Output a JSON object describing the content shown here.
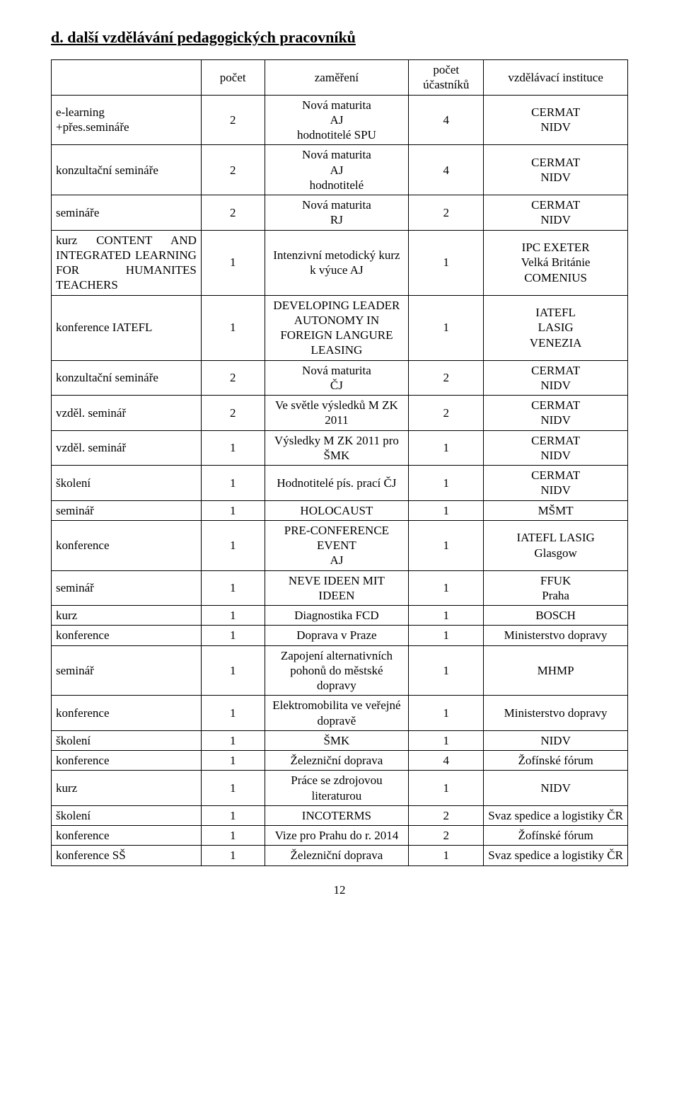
{
  "heading": "d. další vzdělávání pedagogických pracovníků",
  "pageNumber": "12",
  "tableHeaders": {
    "h1": "",
    "h2": "počet",
    "h3": "zaměření",
    "h4": "počet účastníků",
    "h5": "vzdělávací instituce"
  },
  "rows": [
    {
      "c1": "e-learning\n+přes.semináře",
      "c2": "2",
      "c3": "Nová maturita\nAJ\nhodnotitelé SPU",
      "c4": "4",
      "c5": "CERMAT\nNIDV"
    },
    {
      "c1": "konzultační semináře",
      "c2": "2",
      "c3": "Nová maturita\nAJ\nhodnotitelé",
      "c4": "4",
      "c5": "CERMAT\nNIDV"
    },
    {
      "c1": "semináře",
      "c2": "2",
      "c3": "Nová maturita\nRJ",
      "c4": "2",
      "c5": "CERMAT\nNIDV"
    },
    {
      "c1": "kurz CONTENT AND INTEGRATED LEARNING FOR HUMANITES TEACHERS",
      "c2": "1",
      "c3": "Intenzivní metodický kurz k výuce AJ",
      "c4": "1",
      "c5": "IPC EXETER\nVelká Británie\nCOMENIUS",
      "c1Just": true
    },
    {
      "c1": "konference IATEFL",
      "c2": "1",
      "c3": "DEVELOPING LEADER AUTONOMY IN FOREIGN LANGURE LEASING",
      "c4": "1",
      "c5": "IATEFL\nLASIG\nVENEZIA"
    },
    {
      "c1": "konzultační semináře",
      "c2": "2",
      "c3": "Nová maturita\nČJ",
      "c4": "2",
      "c5": "CERMAT\nNIDV"
    },
    {
      "c1": "vzděl. seminář",
      "c2": "2",
      "c3": "Ve světle výsledků M ZK 2011",
      "c4": "2",
      "c5": "CERMAT\nNIDV"
    },
    {
      "c1": "vzděl. seminář",
      "c2": "1",
      "c3": "Výsledky M ZK 2011 pro ŠMK",
      "c4": "1",
      "c5": "CERMAT\nNIDV"
    },
    {
      "c1": "školení",
      "c2": "1",
      "c3": "Hodnotitelé pís. prací ČJ",
      "c4": "1",
      "c5": "CERMAT\nNIDV"
    },
    {
      "c1": "seminář",
      "c2": "1",
      "c3": "HOLOCAUST",
      "c4": "1",
      "c5": "MŠMT"
    },
    {
      "c1": "konference",
      "c2": "1",
      "c3": "PRE-CONFERENCE EVENT\nAJ",
      "c4": "1",
      "c5": "IATEFL LASIG\nGlasgow"
    },
    {
      "c1": "seminář",
      "c2": "1",
      "c3": "NEVE IDEEN MIT IDEEN",
      "c4": "1",
      "c5": "FFUK\nPraha"
    },
    {
      "c1": "kurz",
      "c2": "1",
      "c3": "Diagnostika FCD",
      "c4": "1",
      "c5": "BOSCH"
    },
    {
      "c1": "konference",
      "c2": "1",
      "c3": "Doprava v Praze",
      "c4": "1",
      "c5": "Ministerstvo dopravy"
    },
    {
      "c1": "seminář",
      "c2": "1",
      "c3": "Zapojení alternativních pohonů do městské dopravy",
      "c4": "1",
      "c5": "MHMP"
    },
    {
      "c1": "konference",
      "c2": "1",
      "c3": "Elektromobilita ve veřejné dopravě",
      "c4": "1",
      "c5": "Ministerstvo dopravy"
    },
    {
      "c1": "školení",
      "c2": "1",
      "c3": "ŠMK",
      "c4": "1",
      "c5": "NIDV"
    },
    {
      "c1": "konference",
      "c2": "1",
      "c3": "Železniční doprava",
      "c4": "4",
      "c5": "Žofínské fórum"
    },
    {
      "c1": "kurz",
      "c2": "1",
      "c3": "Práce se zdrojovou literaturou",
      "c4": "1",
      "c5": "NIDV"
    },
    {
      "c1": "školení",
      "c2": "1",
      "c3": "INCOTERMS",
      "c4": "2",
      "c5": "Svaz spedice a logistiky ČR"
    },
    {
      "c1": "konference",
      "c2": "1",
      "c3": "Vize pro Prahu do r. 2014",
      "c4": "2",
      "c5": "Žofínské fórum"
    },
    {
      "c1": "konference SŠ",
      "c2": "1",
      "c3": "Železniční doprava",
      "c4": "1",
      "c5": "Svaz spedice a logistiky ČR"
    }
  ]
}
